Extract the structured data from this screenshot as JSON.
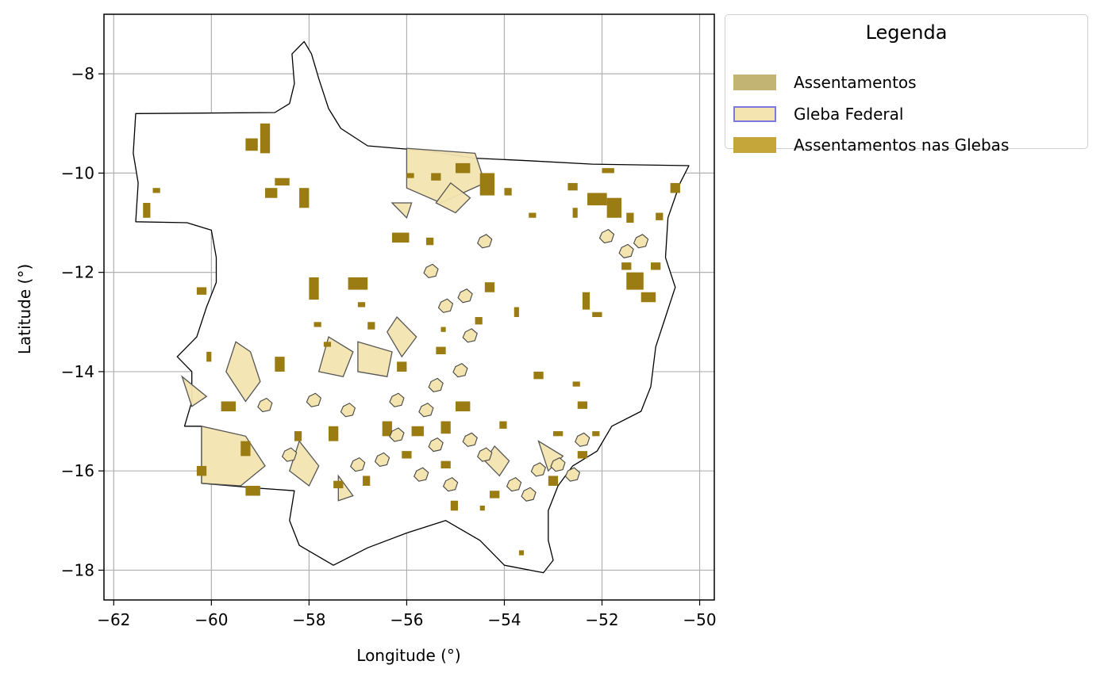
{
  "chart_data": {
    "type": "map",
    "xlabel": "Longitude (°)",
    "ylabel": "Latitude (°)",
    "xlim": [
      -62.2,
      -49.7
    ],
    "ylim": [
      -18.6,
      -6.8
    ],
    "xticks": [
      -62,
      -60,
      -58,
      -56,
      -54,
      -52,
      -50
    ],
    "yticks": [
      -8,
      -10,
      -12,
      -14,
      -16,
      -18
    ],
    "xtick_labels": [
      "−62",
      "−60",
      "−58",
      "−56",
      "−54",
      "−52",
      "−50"
    ],
    "ytick_labels": [
      "−8",
      "−10",
      "−12",
      "−14",
      "−16",
      "−18"
    ],
    "grid": true,
    "legend_position": "outside-top-right",
    "colors": {
      "assentamentos": "#c2b473",
      "gleba_fill": "#f3e4b0",
      "gleba_edge": "#7b78e0",
      "assentamentos_glebas": "#c4a63a",
      "assentamentos_map": "#9a7c12",
      "state_outline": "#000000",
      "grid": "#b0b0b0"
    },
    "state_outline": [
      [
        -58.1,
        -7.35
      ],
      [
        -57.95,
        -7.6
      ],
      [
        -57.8,
        -8.1
      ],
      [
        -57.6,
        -8.7
      ],
      [
        -57.35,
        -9.1
      ],
      [
        -56.8,
        -9.45
      ],
      [
        -55.6,
        -9.55
      ],
      [
        -54.6,
        -9.7
      ],
      [
        -53.5,
        -9.75
      ],
      [
        -52.2,
        -9.82
      ],
      [
        -50.22,
        -9.85
      ],
      [
        -50.4,
        -10.2
      ],
      [
        -50.65,
        -10.9
      ],
      [
        -50.7,
        -11.7
      ],
      [
        -50.5,
        -12.3
      ],
      [
        -50.7,
        -12.9
      ],
      [
        -50.9,
        -13.5
      ],
      [
        -51.0,
        -14.3
      ],
      [
        -51.2,
        -14.8
      ],
      [
        -51.8,
        -15.1
      ],
      [
        -52.1,
        -15.6
      ],
      [
        -52.6,
        -15.9
      ],
      [
        -52.9,
        -16.3
      ],
      [
        -53.1,
        -16.8
      ],
      [
        -53.1,
        -17.4
      ],
      [
        -53.0,
        -17.8
      ],
      [
        -53.2,
        -18.05
      ],
      [
        -54.0,
        -17.9
      ],
      [
        -54.5,
        -17.4
      ],
      [
        -55.2,
        -17.0
      ],
      [
        -56.0,
        -17.25
      ],
      [
        -56.8,
        -17.55
      ],
      [
        -57.5,
        -17.9
      ],
      [
        -58.2,
        -17.5
      ],
      [
        -58.4,
        -17.0
      ],
      [
        -58.3,
        -16.4
      ],
      [
        -59.0,
        -16.35
      ],
      [
        -60.2,
        -16.25
      ],
      [
        -60.2,
        -15.1
      ],
      [
        -60.55,
        -15.1
      ],
      [
        -60.4,
        -14.6
      ],
      [
        -60.4,
        -14.0
      ],
      [
        -60.7,
        -13.7
      ],
      [
        -60.3,
        -13.3
      ],
      [
        -60.1,
        -12.7
      ],
      [
        -59.9,
        -12.2
      ],
      [
        -59.9,
        -11.7
      ],
      [
        -60.0,
        -11.15
      ],
      [
        -60.5,
        -11.0
      ],
      [
        -61.55,
        -10.98
      ],
      [
        -61.5,
        -10.2
      ],
      [
        -61.6,
        -9.6
      ],
      [
        -61.55,
        -8.8
      ],
      [
        -58.7,
        -8.78
      ],
      [
        -58.4,
        -8.6
      ],
      [
        -58.3,
        -8.2
      ],
      [
        -58.35,
        -7.6
      ]
    ],
    "series": [
      {
        "name": "Assentamentos",
        "type": "patch"
      },
      {
        "name": "Gleba Federal",
        "type": "patch"
      },
      {
        "name": "Assentamentos nas Glebas",
        "type": "patch"
      }
    ],
    "glebas": [
      [
        [
          -56.0,
          -9.5
        ],
        [
          -54.6,
          -9.6
        ],
        [
          -54.4,
          -10.2
        ],
        [
          -55.3,
          -10.6
        ],
        [
          -56.0,
          -10.3
        ]
      ],
      [
        [
          -60.2,
          -15.1
        ],
        [
          -59.3,
          -15.3
        ],
        [
          -58.9,
          -15.9
        ],
        [
          -59.4,
          -16.3
        ],
        [
          -60.2,
          -16.25
        ]
      ],
      [
        [
          -59.5,
          -13.4
        ],
        [
          -59.2,
          -13.6
        ],
        [
          -59.0,
          -14.2
        ],
        [
          -59.3,
          -14.6
        ],
        [
          -59.7,
          -14.0
        ]
      ],
      [
        [
          -57.6,
          -13.3
        ],
        [
          -57.1,
          -13.6
        ],
        [
          -57.3,
          -14.1
        ],
        [
          -57.8,
          -14.0
        ]
      ],
      [
        [
          -57.0,
          -13.4
        ],
        [
          -56.3,
          -13.6
        ],
        [
          -56.4,
          -14.1
        ],
        [
          -57.0,
          -14.0
        ]
      ],
      [
        [
          -56.2,
          -12.9
        ],
        [
          -55.8,
          -13.3
        ],
        [
          -56.1,
          -13.7
        ],
        [
          -56.4,
          -13.2
        ]
      ],
      [
        [
          -58.2,
          -15.4
        ],
        [
          -57.8,
          -15.9
        ],
        [
          -58.0,
          -16.3
        ],
        [
          -58.4,
          -16.0
        ]
      ],
      [
        [
          -57.4,
          -16.1
        ],
        [
          -57.1,
          -16.5
        ],
        [
          -57.4,
          -16.6
        ]
      ],
      [
        [
          -60.6,
          -14.1
        ],
        [
          -60.4,
          -14.7
        ],
        [
          -60.1,
          -14.5
        ]
      ],
      [
        [
          -56.3,
          -10.6
        ],
        [
          -56.0,
          -10.9
        ],
        [
          -55.9,
          -10.6
        ]
      ],
      [
        [
          -55.1,
          -10.2
        ],
        [
          -54.7,
          -10.5
        ],
        [
          -55.0,
          -10.8
        ],
        [
          -55.4,
          -10.6
        ]
      ],
      [
        [
          -54.2,
          -15.5
        ],
        [
          -53.9,
          -15.8
        ],
        [
          -54.1,
          -16.1
        ],
        [
          -54.4,
          -15.8
        ]
      ],
      [
        [
          -53.3,
          -15.4
        ],
        [
          -52.8,
          -15.7
        ],
        [
          -53.1,
          -16.0
        ]
      ]
    ],
    "assentamentos": [
      [
        -59.0,
        -9.0,
        0.2,
        0.6
      ],
      [
        -59.3,
        -9.3,
        0.25,
        0.25
      ],
      [
        -58.7,
        -10.1,
        0.3,
        0.15
      ],
      [
        -58.9,
        -10.3,
        0.25,
        0.2
      ],
      [
        -58.2,
        -10.3,
        0.2,
        0.4
      ],
      [
        -55.0,
        -9.8,
        0.3,
        0.2
      ],
      [
        -54.5,
        -10.0,
        0.3,
        0.45
      ],
      [
        -54.0,
        -10.3,
        0.15,
        0.15
      ],
      [
        -52.7,
        -10.2,
        0.2,
        0.15
      ],
      [
        -52.0,
        -9.9,
        0.25,
        0.1
      ],
      [
        -52.3,
        -10.4,
        0.4,
        0.25
      ],
      [
        -51.9,
        -10.5,
        0.3,
        0.4
      ],
      [
        -51.5,
        -10.8,
        0.15,
        0.2
      ],
      [
        -50.6,
        -10.2,
        0.2,
        0.2
      ],
      [
        -50.9,
        -10.8,
        0.15,
        0.15
      ],
      [
        -56.3,
        -11.2,
        0.35,
        0.2
      ],
      [
        -55.6,
        -11.3,
        0.15,
        0.15
      ],
      [
        -57.2,
        -12.1,
        0.4,
        0.25
      ],
      [
        -58.0,
        -12.1,
        0.2,
        0.45
      ],
      [
        -54.4,
        -12.2,
        0.2,
        0.2
      ],
      [
        -51.6,
        -11.8,
        0.2,
        0.15
      ],
      [
        -51.5,
        -12.0,
        0.35,
        0.35
      ],
      [
        -51.0,
        -11.8,
        0.2,
        0.15
      ],
      [
        -51.2,
        -12.4,
        0.3,
        0.2
      ],
      [
        -52.4,
        -12.4,
        0.15,
        0.35
      ],
      [
        -52.2,
        -12.8,
        0.2,
        0.1
      ],
      [
        -54.6,
        -12.9,
        0.15,
        0.15
      ],
      [
        -55.4,
        -13.5,
        0.2,
        0.15
      ],
      [
        -56.8,
        -13.0,
        0.15,
        0.15
      ],
      [
        -53.8,
        -12.7,
        0.1,
        0.2
      ],
      [
        -57.0,
        -12.6,
        0.15,
        0.1
      ],
      [
        -55.3,
        -13.1,
        0.1,
        0.1
      ],
      [
        -53.4,
        -14.0,
        0.2,
        0.15
      ],
      [
        -52.6,
        -14.2,
        0.15,
        0.1
      ],
      [
        -52.5,
        -14.6,
        0.2,
        0.15
      ],
      [
        -55.0,
        -14.6,
        0.3,
        0.2
      ],
      [
        -55.3,
        -15.0,
        0.2,
        0.25
      ],
      [
        -55.9,
        -15.1,
        0.25,
        0.2
      ],
      [
        -56.5,
        -15.0,
        0.2,
        0.3
      ],
      [
        -57.6,
        -15.1,
        0.2,
        0.3
      ],
      [
        -58.3,
        -15.2,
        0.15,
        0.2
      ],
      [
        -59.4,
        -15.4,
        0.2,
        0.3
      ],
      [
        -59.8,
        -14.6,
        0.3,
        0.2
      ],
      [
        -60.3,
        -15.9,
        0.2,
        0.2
      ],
      [
        -59.3,
        -16.3,
        0.3,
        0.2
      ],
      [
        -57.5,
        -16.2,
        0.2,
        0.15
      ],
      [
        -56.9,
        -16.1,
        0.15,
        0.2
      ],
      [
        -56.1,
        -15.6,
        0.2,
        0.15
      ],
      [
        -55.3,
        -15.8,
        0.2,
        0.15
      ],
      [
        -54.3,
        -16.4,
        0.2,
        0.15
      ],
      [
        -53.1,
        -16.1,
        0.2,
        0.2
      ],
      [
        -52.5,
        -15.6,
        0.2,
        0.15
      ],
      [
        -52.2,
        -15.2,
        0.15,
        0.1
      ],
      [
        -53.0,
        -15.2,
        0.2,
        0.1
      ],
      [
        -54.1,
        -15.0,
        0.15,
        0.15
      ],
      [
        -56.2,
        -13.8,
        0.2,
        0.2
      ],
      [
        -57.7,
        -13.4,
        0.15,
        0.1
      ],
      [
        -58.7,
        -13.7,
        0.2,
        0.3
      ],
      [
        -60.1,
        -13.6,
        0.1,
        0.2
      ],
      [
        -60.3,
        -12.3,
        0.2,
        0.15
      ],
      [
        -61.4,
        -10.6,
        0.15,
        0.3
      ],
      [
        -61.2,
        -10.3,
        0.15,
        0.1
      ],
      [
        -55.1,
        -16.6,
        0.15,
        0.2
      ],
      [
        -54.5,
        -16.7,
        0.1,
        0.1
      ],
      [
        -53.7,
        -17.6,
        0.1,
        0.1
      ],
      [
        -52.6,
        -10.7,
        0.1,
        0.2
      ],
      [
        -53.5,
        -10.8,
        0.15,
        0.1
      ],
      [
        -55.5,
        -10.0,
        0.2,
        0.15
      ],
      [
        -56.0,
        -10.0,
        0.15,
        0.1
      ],
      [
        -57.9,
        -13.0,
        0.15,
        0.1
      ]
    ],
    "small_outlines": [
      [
        -56.3,
        -14.5
      ],
      [
        -55.7,
        -14.7
      ],
      [
        -55.5,
        -15.4
      ],
      [
        -56.6,
        -15.7
      ],
      [
        -57.1,
        -15.8
      ],
      [
        -55.8,
        -16.0
      ],
      [
        -54.8,
        -15.3
      ],
      [
        -54.5,
        -15.6
      ],
      [
        -53.9,
        -16.2
      ],
      [
        -53.6,
        -16.4
      ],
      [
        -53.0,
        -15.8
      ],
      [
        -52.7,
        -16.0
      ],
      [
        -52.5,
        -15.3
      ],
      [
        -53.4,
        -15.9
      ],
      [
        -55.2,
        -16.2
      ],
      [
        -56.3,
        -15.2
      ],
      [
        -57.3,
        -14.7
      ],
      [
        -58.0,
        -14.5
      ],
      [
        -59.0,
        -14.6
      ],
      [
        -55.0,
        -13.9
      ],
      [
        -55.5,
        -14.2
      ],
      [
        -54.9,
        -12.4
      ],
      [
        -55.6,
        -11.9
      ],
      [
        -54.5,
        -11.3
      ],
      [
        -52.0,
        -11.2
      ],
      [
        -51.6,
        -11.5
      ],
      [
        -51.3,
        -11.3
      ],
      [
        -55.3,
        -12.6
      ],
      [
        -54.8,
        -13.2
      ],
      [
        -58.5,
        -15.6
      ]
    ]
  },
  "legend": {
    "title": "Legenda",
    "items": [
      {
        "label": "Assentamentos",
        "swatch": "assentamentos"
      },
      {
        "label": "Gleba Federal",
        "swatch": "gleba"
      },
      {
        "label": "Assentamentos nas Glebas",
        "swatch": "assentamentos_glebas"
      }
    ]
  }
}
